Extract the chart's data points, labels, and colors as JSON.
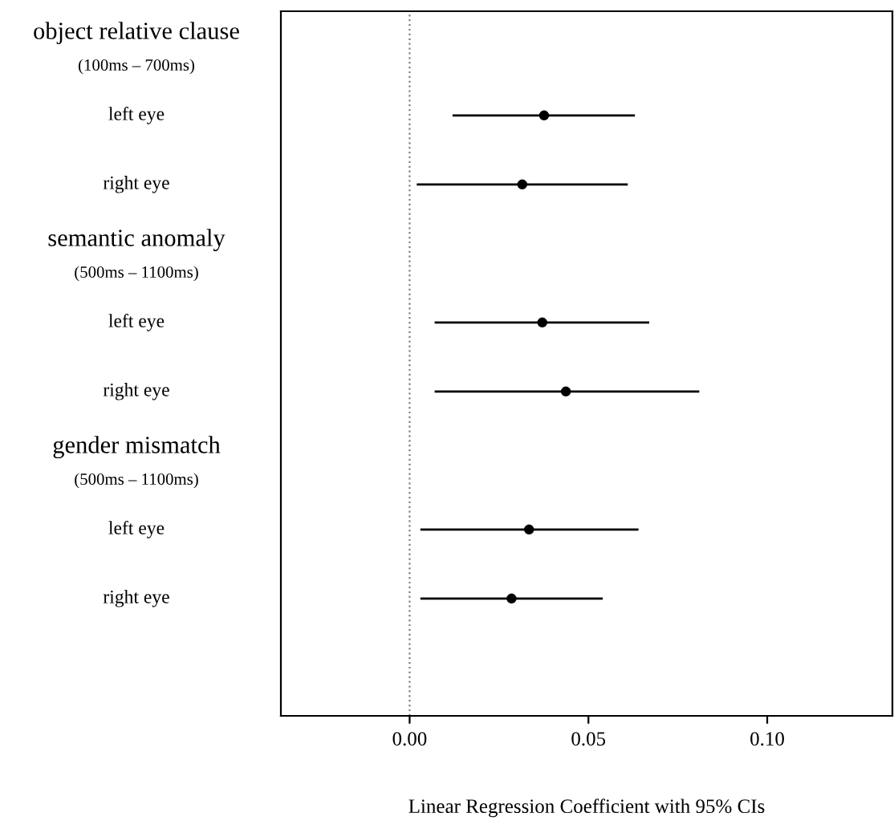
{
  "chart_data": {
    "type": "scatter",
    "orientation": "horizontal",
    "categories": [
      "object relative clause\n(100ms – 700ms)",
      "left eye",
      "right eye",
      "semantic anomaly\n(500ms – 1100ms)",
      "left eye",
      "right eye",
      "gender mismatch\n(500ms – 1100ms)",
      "left eye",
      "right eye"
    ],
    "values": [
      null,
      0.0376,
      0.0315,
      null,
      0.0371,
      0.0437,
      null,
      0.0334,
      0.0285
    ],
    "errors": [
      null,
      [
        0.012,
        0.063
      ],
      [
        0.002,
        0.061
      ],
      null,
      [
        0.007,
        0.067
      ],
      [
        0.007,
        0.081
      ],
      null,
      [
        0.003,
        0.064
      ],
      [
        0.003,
        0.054
      ]
    ],
    "color": "#000000",
    "marker": "circle",
    "grid": false,
    "legend": false,
    "xlim": [
      -0.036,
      0.135
    ],
    "xticks": [
      {
        "value": 0,
        "label": "0.00"
      },
      {
        "value": 0.05,
        "label": "0.05"
      },
      {
        "value": 0.1,
        "label": "0.10"
      }
    ],
    "xlabel": "Linear Regression Coefficient with 95% CIs",
    "ref_lines": [
      {
        "axis": "x",
        "value": 0,
        "color": "#808080",
        "line_style": "dotted"
      }
    ]
  }
}
